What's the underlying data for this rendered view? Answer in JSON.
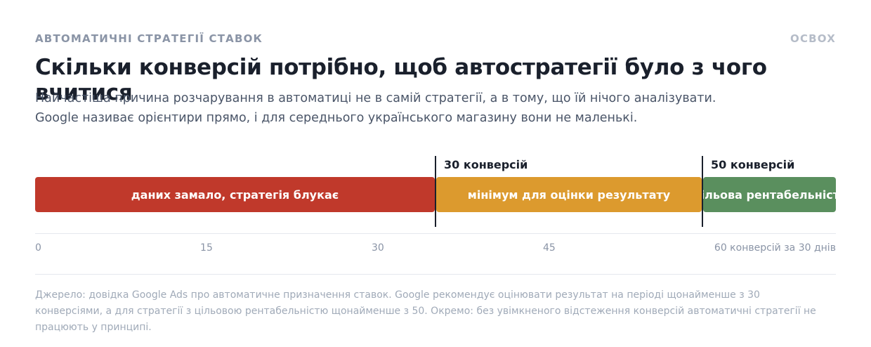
{
  "header": {
    "kicker": "АВТОМАТИЧНІ СТРАТЕГІЇ СТАВОК",
    "brand": "OCBOX",
    "title": "Скільки конверсій потрібно, щоб автостратегії було з чого вчитися",
    "subtitle": "Найчастіша причина розчарування в автоматиці не в самій стратегії, а в тому, що їй нічого аналізувати. Google називає орієнтири прямо, і для середнього українського магазину вони не маленькі."
  },
  "chart_data": {
    "type": "segmented-bar",
    "xlim": [
      0,
      60
    ],
    "xticks": [
      0,
      15,
      30,
      45,
      {
        "value": 60,
        "label": "60 конверсій за 30 днів"
      }
    ],
    "series": [
      {
        "name": "даних замало, стратегія блукає",
        "color": "#c0392b",
        "values": [
          30
        ]
      },
      {
        "name": "мінімум для оцінки результату",
        "color": "#dc9a2e",
        "values": [
          20
        ]
      },
      {
        "name": "цільова рентабельність",
        "color": "#5a8f5e",
        "values": [
          10
        ]
      }
    ],
    "markers": [
      {
        "value": 30,
        "label": "30 конверсій"
      },
      {
        "value": 50,
        "label": "50 конверсій"
      }
    ]
  },
  "footer": {
    "source": "Джерело: довідка Google Ads про автоматичне призначення ставок. Google рекомендує оцінювати результат на періоді щонайменше з 30 конверсіями, а для стратегії з цільовою рентабельністю щонайменше з 50. Окремо: без увімкненого відстеження конверсій автоматичні стратегії не працюють у принципі."
  }
}
